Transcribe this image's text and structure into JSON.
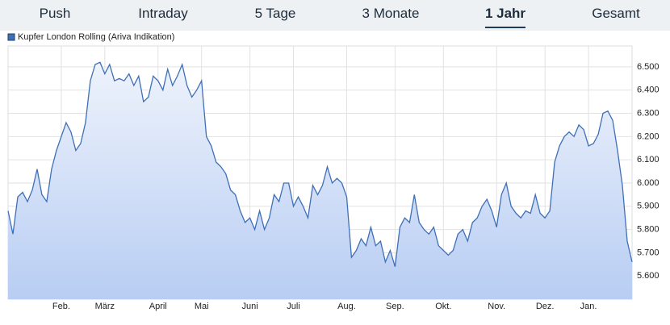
{
  "tabs": {
    "items": [
      "Push",
      "Intraday",
      "5 Tage",
      "3 Monate",
      "1 Jahr",
      "Gesamt"
    ],
    "active": 4
  },
  "chart_data": {
    "type": "area",
    "categories": [
      null,
      null,
      null,
      null,
      null,
      null,
      null,
      null,
      null,
      null,
      null,
      "Feb.",
      null,
      null,
      null,
      null,
      null,
      null,
      null,
      null,
      "März",
      null,
      null,
      null,
      null,
      null,
      null,
      null,
      null,
      null,
      null,
      "April",
      null,
      null,
      null,
      null,
      null,
      null,
      null,
      null,
      "Mai",
      null,
      null,
      null,
      null,
      null,
      null,
      null,
      null,
      null,
      "Juni",
      null,
      null,
      null,
      null,
      null,
      null,
      null,
      null,
      "Juli",
      null,
      null,
      null,
      null,
      null,
      null,
      null,
      null,
      null,
      null,
      "Aug.",
      null,
      null,
      null,
      null,
      null,
      null,
      null,
      null,
      null,
      "Sep.",
      null,
      null,
      null,
      null,
      null,
      null,
      null,
      null,
      null,
      "Okt.",
      null,
      null,
      null,
      null,
      null,
      null,
      null,
      null,
      null,
      null,
      "Nov.",
      null,
      null,
      null,
      null,
      null,
      null,
      null,
      null,
      null,
      "Dez.",
      null,
      null,
      null,
      null,
      null,
      null,
      null,
      null,
      "Jan.",
      null,
      null,
      null,
      null,
      null,
      null,
      null,
      null,
      null
    ],
    "series": [
      {
        "name": "Kupfer London Rolling (Ariva Indikation)",
        "color": "#3f6fb6",
        "values": [
          5.88,
          5.78,
          5.94,
          5.96,
          5.92,
          5.97,
          6.06,
          5.95,
          5.92,
          6.06,
          6.14,
          6.2,
          6.26,
          6.22,
          6.14,
          6.17,
          6.26,
          6.44,
          6.51,
          6.52,
          6.47,
          6.51,
          6.44,
          6.45,
          6.44,
          6.47,
          6.42,
          6.46,
          6.35,
          6.37,
          6.46,
          6.44,
          6.4,
          6.49,
          6.42,
          6.46,
          6.51,
          6.42,
          6.37,
          6.4,
          6.44,
          6.2,
          6.16,
          6.09,
          6.07,
          6.04,
          5.97,
          5.95,
          5.88,
          5.83,
          5.85,
          5.8,
          5.88,
          5.8,
          5.85,
          5.95,
          5.92,
          6.0,
          6.0,
          5.9,
          5.94,
          5.9,
          5.85,
          5.99,
          5.95,
          5.99,
          6.07,
          6.0,
          6.02,
          6.0,
          5.94,
          5.68,
          5.71,
          5.76,
          5.73,
          5.81,
          5.73,
          5.75,
          5.66,
          5.71,
          5.64,
          5.81,
          5.85,
          5.83,
          5.95,
          5.83,
          5.8,
          5.78,
          5.81,
          5.73,
          5.71,
          5.69,
          5.71,
          5.78,
          5.8,
          5.75,
          5.83,
          5.85,
          5.9,
          5.93,
          5.88,
          5.81,
          5.95,
          6.0,
          5.9,
          5.87,
          5.85,
          5.88,
          5.87,
          5.95,
          5.87,
          5.85,
          5.88,
          6.09,
          6.16,
          6.2,
          6.22,
          6.2,
          6.25,
          6.23,
          6.16,
          6.17,
          6.21,
          6.3,
          6.31,
          6.27,
          6.14,
          5.99,
          5.75,
          5.66
        ]
      }
    ],
    "ylim": [
      5.5,
      6.59
    ],
    "yticks": [
      {
        "value": 5.6,
        "label": "5.600"
      },
      {
        "value": 5.7,
        "label": "5.700"
      },
      {
        "value": 5.8,
        "label": "5.800"
      },
      {
        "value": 5.9,
        "label": "5.900"
      },
      {
        "value": 6.0,
        "label": "6.000"
      },
      {
        "value": 6.1,
        "label": "6.100"
      },
      {
        "value": 6.2,
        "label": "6.200"
      },
      {
        "value": 6.3,
        "label": "6.300"
      },
      {
        "value": 6.4,
        "label": "6.400"
      },
      {
        "value": 6.5,
        "label": "6.500"
      }
    ],
    "grid": true
  }
}
